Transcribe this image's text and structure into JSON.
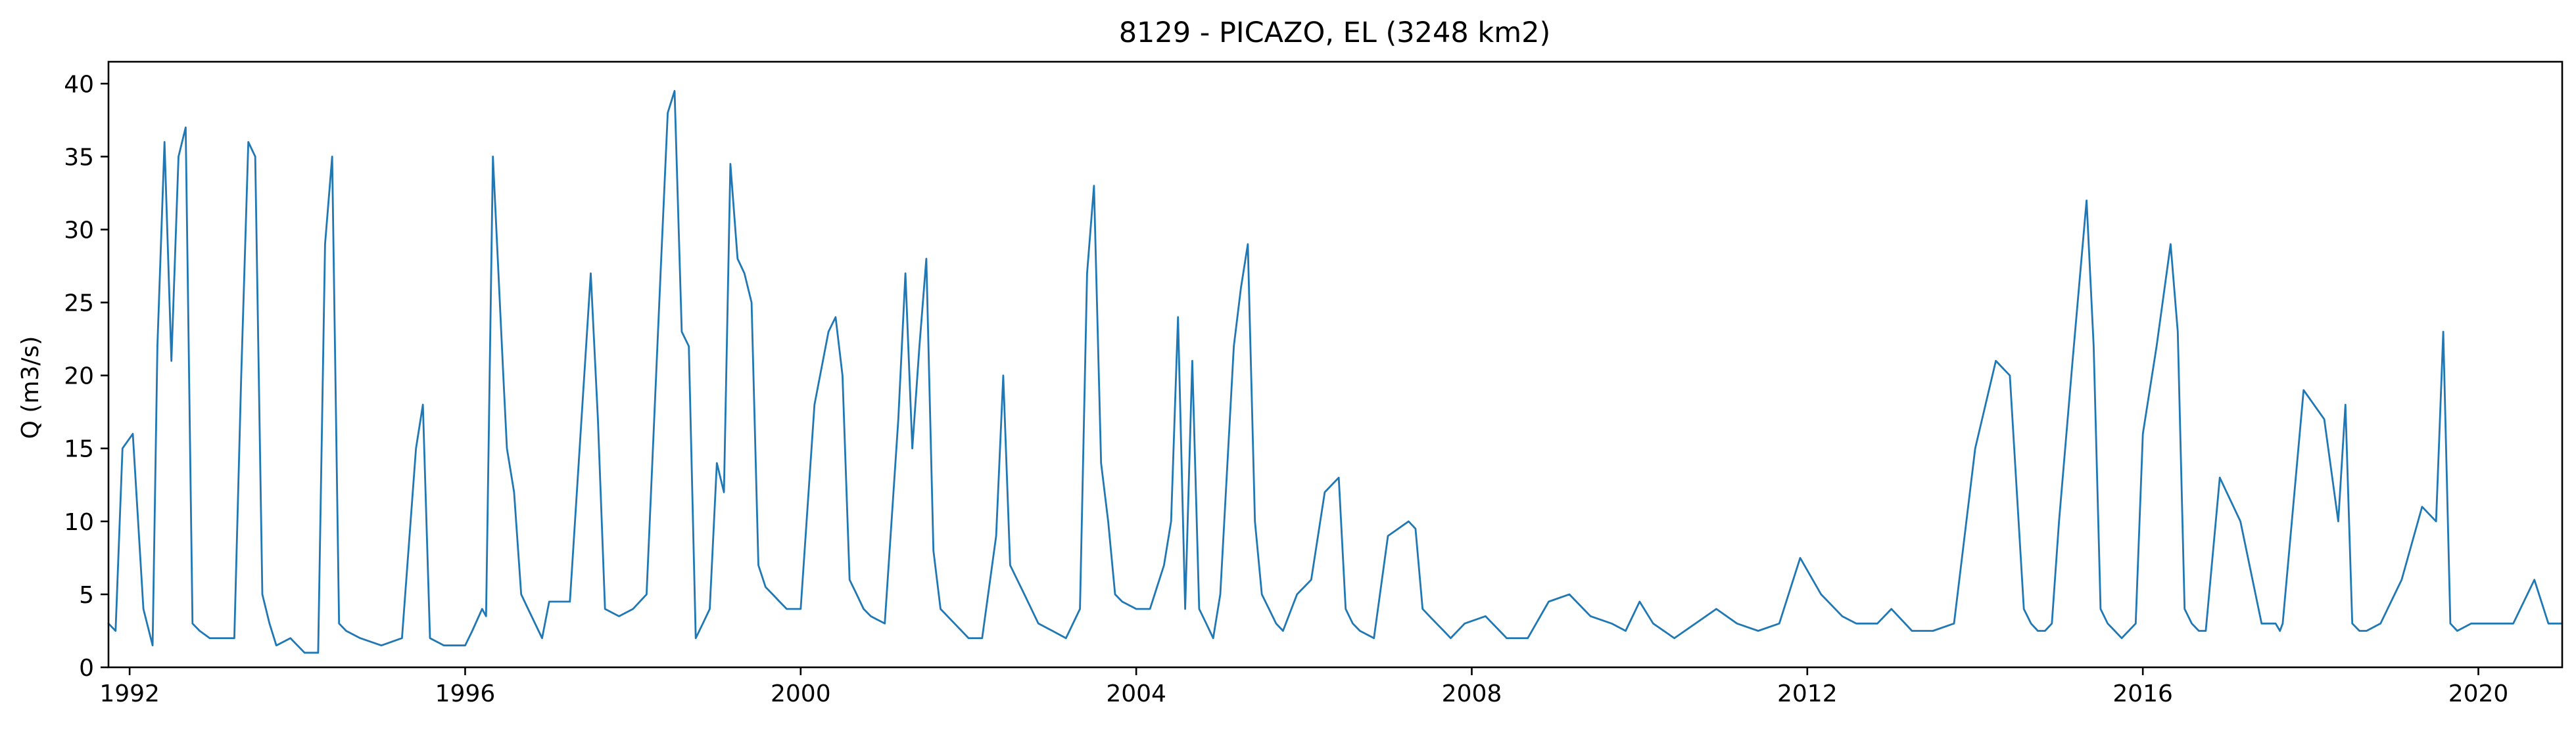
{
  "chart_data": {
    "type": "line",
    "title": "8129 - PICAZO, EL (3248 km2)",
    "xlabel": "",
    "ylabel": "Q (m3/s)",
    "xlim": [
      "1991-10-01",
      "2020-12-31"
    ],
    "ylim": [
      0,
      41.5
    ],
    "x_ticks": [
      "1992",
      "1996",
      "2000",
      "2004",
      "2008",
      "2012",
      "2016",
      "2020"
    ],
    "y_ticks": [
      0,
      5,
      10,
      15,
      20,
      25,
      30,
      35,
      40
    ],
    "grid": false,
    "line_color": "#1f77b4",
    "series": [
      {
        "x": [
          "1991-10-01",
          "1991-11-01",
          "1991-12-01",
          "1992-01-15",
          "1992-03-01",
          "1992-04-10",
          "1992-05-01",
          "1992-06-01",
          "1992-07-01",
          "1992-08-01",
          "1992-09-01",
          "1992-10-01",
          "1992-11-01",
          "1992-12-15",
          "1993-02-01",
          "1993-04-01",
          "1993-05-01",
          "1993-06-01",
          "1993-07-01",
          "1993-08-01",
          "1993-09-01",
          "1993-10-01",
          "1993-12-01",
          "1994-02-01",
          "1994-04-01",
          "1994-05-01",
          "1994-06-01",
          "1994-07-01",
          "1994-08-01",
          "1994-10-01",
          "1995-01-01",
          "1995-04-01",
          "1995-06-01",
          "1995-07-01",
          "1995-08-01",
          "1995-10-01",
          "1996-01-01",
          "1996-02-01",
          "1996-03-15",
          "1996-04-01",
          "1996-05-01",
          "1996-06-15",
          "1996-07-01",
          "1996-08-01",
          "1996-09-01",
          "1996-10-01",
          "1996-12-01",
          "1997-01-01",
          "1997-04-01",
          "1997-07-01",
          "1997-08-01",
          "1997-09-01",
          "1997-11-01",
          "1998-01-01",
          "1998-03-01",
          "1998-05-01",
          "1998-06-01",
          "1998-07-01",
          "1998-08-01",
          "1998-09-01",
          "1998-10-01",
          "1998-11-01",
          "1998-12-01",
          "1999-01-01",
          "1999-02-01",
          "1999-03-01",
          "1999-04-01",
          "1999-05-01",
          "1999-06-01",
          "1999-07-01",
          "1999-08-01",
          "1999-09-01",
          "1999-10-01",
          "1999-11-01",
          "2000-01-01",
          "2000-03-01",
          "2000-05-01",
          "2000-06-01",
          "2000-07-01",
          "2000-08-01",
          "2000-09-01",
          "2000-10-01",
          "2000-11-01",
          "2001-01-01",
          "2001-03-01",
          "2001-04-01",
          "2001-05-01",
          "2001-06-01",
          "2001-07-01",
          "2001-08-01",
          "2001-09-01",
          "2001-11-01",
          "2002-01-01",
          "2002-03-01",
          "2002-05-01",
          "2002-06-01",
          "2002-07-01",
          "2002-08-01",
          "2002-09-01",
          "2002-11-01",
          "2003-01-01",
          "2003-03-01",
          "2003-05-01",
          "2003-06-01",
          "2003-07-01",
          "2003-08-01",
          "2003-09-01",
          "2003-10-01",
          "2003-11-01",
          "2004-01-01",
          "2004-03-01",
          "2004-05-01",
          "2004-06-01",
          "2004-07-01",
          "2004-08-01",
          "2004-09-01",
          "2004-10-01",
          "2004-11-01",
          "2004-12-01",
          "2005-01-01",
          "2005-03-01",
          "2005-04-01",
          "2005-05-01",
          "2005-06-01",
          "2005-07-01",
          "2005-08-01",
          "2005-09-01",
          "2005-10-01",
          "2005-12-01",
          "2006-02-01",
          "2006-04-01",
          "2006-06-01",
          "2006-07-01",
          "2006-08-01",
          "2006-09-01",
          "2006-11-01",
          "2007-01-01",
          "2007-04-01",
          "2007-05-01",
          "2007-06-01",
          "2007-07-01",
          "2007-08-01",
          "2007-09-01",
          "2007-10-01",
          "2007-12-01",
          "2008-03-01",
          "2008-06-01",
          "2008-09-01",
          "2008-12-01",
          "2009-03-01",
          "2009-06-01",
          "2009-09-01",
          "2009-11-01",
          "2010-01-01",
          "2010-03-01",
          "2010-06-01",
          "2010-09-01",
          "2010-12-01",
          "2011-03-01",
          "2011-06-01",
          "2011-09-01",
          "2011-12-01",
          "2012-03-01",
          "2012-06-01",
          "2012-08-01",
          "2012-09-01",
          "2012-11-01",
          "2013-01-01",
          "2013-04-01",
          "2013-07-01",
          "2013-10-01",
          "2014-01-01",
          "2014-04-01",
          "2014-06-01",
          "2014-08-01",
          "2014-09-01",
          "2014-10-01",
          "2014-11-01",
          "2014-12-01",
          "2015-01-01",
          "2015-03-01",
          "2015-05-01",
          "2015-06-01",
          "2015-07-01",
          "2015-08-01",
          "2015-09-01",
          "2015-10-01",
          "2015-12-01",
          "2016-01-01",
          "2016-03-01",
          "2016-05-01",
          "2016-06-01",
          "2016-07-01",
          "2016-08-01",
          "2016-09-01",
          "2016-10-01",
          "2016-12-01",
          "2017-03-01",
          "2017-06-01",
          "2017-08-01",
          "2017-08-20",
          "2017-09-01",
          "2017-12-01",
          "2018-03-01",
          "2018-05-01",
          "2018-06-01",
          "2018-07-01",
          "2018-08-01",
          "2018-09-01",
          "2018-11-01",
          "2019-02-01",
          "2019-05-01",
          "2019-07-01",
          "2019-08-01",
          "2019-09-01",
          "2019-10-01",
          "2019-12-01",
          "2020-03-01",
          "2020-06-01",
          "2020-09-01",
          "2020-11-01",
          "2020-12-31"
        ],
        "y": [
          3,
          2.5,
          15,
          16,
          4,
          1.5,
          22,
          36,
          21,
          35,
          37,
          3,
          2.5,
          2,
          2,
          2,
          20,
          36,
          35,
          5,
          3,
          1.5,
          2,
          1,
          1,
          29,
          35,
          3,
          2.5,
          2,
          1.5,
          2,
          15,
          18,
          2,
          1.5,
          1.5,
          2.5,
          4,
          3.5,
          35,
          20,
          15,
          12,
          5,
          4,
          2,
          4.5,
          4.5,
          27,
          17,
          4,
          3.5,
          4,
          5,
          27,
          38,
          39.5,
          23,
          22,
          2,
          3,
          4,
          14,
          12,
          34.5,
          28,
          27,
          25,
          7,
          5.5,
          5,
          4.5,
          4,
          4,
          18,
          23,
          24,
          20,
          6,
          5,
          4,
          3.5,
          3,
          17,
          27,
          15,
          22,
          28,
          8,
          4,
          3,
          2,
          2,
          9,
          20,
          7,
          6,
          5,
          3,
          2.5,
          2,
          4,
          27,
          33,
          14,
          10,
          5,
          4.5,
          4,
          4,
          7,
          10,
          24,
          4,
          21,
          4,
          3,
          2,
          5,
          22,
          26,
          29,
          10,
          5,
          4,
          3,
          2.5,
          5,
          6,
          12,
          13,
          4,
          3,
          2.5,
          2,
          9,
          10,
          9.5,
          4,
          3.5,
          3,
          2.5,
          2,
          3,
          3.5,
          2,
          2,
          4.5,
          5,
          3.5,
          3,
          2.5,
          4.5,
          3,
          2,
          3,
          4,
          3,
          2.5,
          3,
          7.5,
          5,
          3.5,
          3,
          3,
          3,
          4,
          2.5,
          2.5,
          3,
          15,
          21,
          20,
          4,
          3,
          2.5,
          2.5,
          3,
          10,
          21,
          32,
          22,
          4,
          3,
          2.5,
          2,
          3,
          16,
          22,
          29,
          23,
          4,
          3,
          2.5,
          2.5,
          13,
          10,
          3,
          3,
          2.5,
          3,
          19,
          17,
          10,
          18,
          3,
          2.5,
          2.5,
          3,
          6,
          11,
          10,
          23,
          3,
          2.5,
          3,
          3,
          3,
          6,
          3,
          3
        ]
      }
    ]
  }
}
